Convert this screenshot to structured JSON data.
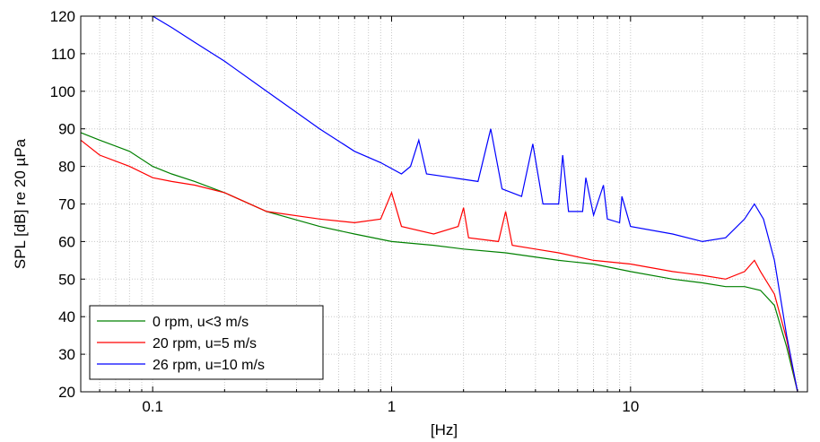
{
  "chart_data": {
    "type": "line",
    "xlabel": "[Hz]",
    "ylabel": "SPL [dB] re 20 µPa",
    "x_scale": "log",
    "xlim": [
      0.05,
      55
    ],
    "ylim": [
      20,
      120
    ],
    "x_ticks": [
      {
        "value": 0.1,
        "label": "0.1"
      },
      {
        "value": 1,
        "label": "1"
      },
      {
        "value": 10,
        "label": "10"
      }
    ],
    "y_ticks": [
      {
        "value": 20,
        "label": "20"
      },
      {
        "value": 30,
        "label": "30"
      },
      {
        "value": 40,
        "label": "40"
      },
      {
        "value": 50,
        "label": "50"
      },
      {
        "value": 60,
        "label": "60"
      },
      {
        "value": 70,
        "label": "70"
      },
      {
        "value": 80,
        "label": "80"
      },
      {
        "value": 90,
        "label": "90"
      },
      {
        "value": 100,
        "label": "100"
      },
      {
        "value": 110,
        "label": "110"
      },
      {
        "value": 120,
        "label": "120"
      }
    ],
    "grid": true,
    "legend_position": "bottom-left",
    "series": [
      {
        "name": "0 rpm, u<3 m/s",
        "color": "#008000",
        "x": [
          0.05,
          0.06,
          0.08,
          0.1,
          0.12,
          0.15,
          0.2,
          0.3,
          0.5,
          0.7,
          1.0,
          1.5,
          2.0,
          3.0,
          5.0,
          7.0,
          10.0,
          15.0,
          20.0,
          25.0,
          30.0,
          35.0,
          40.0,
          45.0,
          50.0
        ],
        "y": [
          89,
          87,
          84,
          80,
          78,
          76,
          73,
          68,
          64,
          62,
          60,
          59,
          58,
          57,
          55,
          54,
          52,
          50,
          49,
          48,
          48,
          47,
          43,
          32,
          20
        ]
      },
      {
        "name": "20 rpm, u=5 m/s",
        "color": "#ff0000",
        "x": [
          0.05,
          0.06,
          0.08,
          0.1,
          0.12,
          0.15,
          0.2,
          0.3,
          0.5,
          0.7,
          0.9,
          1.0,
          1.1,
          1.5,
          1.9,
          2.0,
          2.1,
          2.8,
          3.0,
          3.2,
          4.0,
          5.0,
          7.0,
          10.0,
          15.0,
          20.0,
          25.0,
          30.0,
          33.0,
          35.0,
          40.0,
          45.0,
          50.0
        ],
        "y": [
          87,
          83,
          80,
          77,
          76,
          75,
          73,
          68,
          66,
          65,
          66,
          73,
          64,
          62,
          64,
          69,
          61,
          60,
          68,
          59,
          58,
          57,
          55,
          54,
          52,
          51,
          50,
          52,
          55,
          52,
          46,
          34,
          20
        ]
      },
      {
        "name": "26 rpm, u=10 m/s",
        "color": "#0000ff",
        "x": [
          0.1,
          0.12,
          0.15,
          0.2,
          0.3,
          0.5,
          0.7,
          0.9,
          1.1,
          1.2,
          1.3,
          1.4,
          1.8,
          2.3,
          2.6,
          2.9,
          3.5,
          3.9,
          4.3,
          5.0,
          5.2,
          5.5,
          6.3,
          6.5,
          7.0,
          7.7,
          8.0,
          9.0,
          9.2,
          10.0,
          15.0,
          20.0,
          25.0,
          30.0,
          33.0,
          36.0,
          40.0,
          45.0,
          50.0
        ],
        "y": [
          120,
          117,
          113,
          108,
          100,
          90,
          84,
          81,
          78,
          80,
          87,
          78,
          77,
          76,
          90,
          74,
          72,
          86,
          70,
          70,
          83,
          68,
          68,
          77,
          67,
          75,
          66,
          65,
          72,
          64,
          62,
          60,
          61,
          66,
          70,
          66,
          55,
          35,
          20
        ]
      }
    ]
  }
}
